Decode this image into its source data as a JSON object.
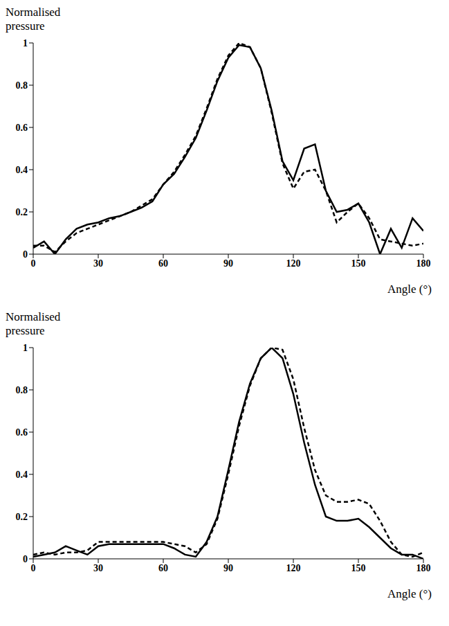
{
  "chart_data": [
    {
      "type": "line",
      "y_label": "Normalised pressure",
      "x_label": "Angle (°)",
      "x": [
        0,
        5,
        10,
        15,
        20,
        25,
        30,
        35,
        40,
        45,
        50,
        55,
        60,
        65,
        70,
        75,
        80,
        85,
        90,
        95,
        100,
        105,
        110,
        115,
        120,
        125,
        130,
        135,
        140,
        145,
        150,
        155,
        160,
        165,
        170,
        175,
        180
      ],
      "series": [
        {
          "color": "#000000",
          "line_style": "solid",
          "values": [
            0.03,
            0.06,
            0,
            0.07,
            0.12,
            0.14,
            0.15,
            0.17,
            0.18,
            0.2,
            0.22,
            0.25,
            0.33,
            0.38,
            0.46,
            0.55,
            0.68,
            0.82,
            0.93,
            0.99,
            0.98,
            0.88,
            0.68,
            0.44,
            0.35,
            0.5,
            0.52,
            0.3,
            0.2,
            0.21,
            0.24,
            0.15,
            0,
            0.12,
            0.03,
            0.17,
            0.11
          ]
        },
        {
          "color": "#000000",
          "line_style": "dashed",
          "values": [
            0.04,
            0.04,
            0.01,
            0.06,
            0.1,
            0.12,
            0.14,
            0.16,
            0.18,
            0.2,
            0.23,
            0.26,
            0.33,
            0.39,
            0.47,
            0.56,
            0.69,
            0.83,
            0.94,
            1.0,
            0.98,
            0.88,
            0.67,
            0.43,
            0.31,
            0.39,
            0.4,
            0.3,
            0.15,
            0.2,
            0.24,
            0.17,
            0.07,
            0.06,
            0.05,
            0.04,
            0.05
          ]
        }
      ],
      "xlim": [
        0,
        180
      ],
      "ylim": [
        0,
        1
      ],
      "xticks": [
        0,
        30,
        60,
        90,
        120,
        150,
        180
      ],
      "yticks": [
        0,
        0.2,
        0.4,
        0.6,
        0.8,
        1
      ]
    },
    {
      "type": "line",
      "y_label": "Normalised pressure",
      "x_label": "Angle (°)",
      "x": [
        0,
        5,
        10,
        15,
        20,
        25,
        30,
        35,
        40,
        45,
        50,
        55,
        60,
        65,
        70,
        75,
        80,
        85,
        90,
        95,
        100,
        105,
        110,
        115,
        120,
        125,
        130,
        135,
        140,
        145,
        150,
        155,
        160,
        165,
        170,
        175,
        180
      ],
      "series": [
        {
          "color": "#000000",
          "line_style": "solid",
          "values": [
            0.01,
            0.02,
            0.03,
            0.06,
            0.04,
            0.02,
            0.06,
            0.07,
            0.07,
            0.07,
            0.07,
            0.07,
            0.07,
            0.05,
            0.02,
            0.01,
            0.08,
            0.2,
            0.42,
            0.65,
            0.83,
            0.95,
            1.0,
            0.95,
            0.78,
            0.55,
            0.35,
            0.2,
            0.18,
            0.18,
            0.19,
            0.15,
            0.1,
            0.05,
            0.02,
            0.02,
            0
          ]
        },
        {
          "color": "#000000",
          "line_style": "dashed",
          "values": [
            0.02,
            0.03,
            0.02,
            0.03,
            0.03,
            0.04,
            0.08,
            0.08,
            0.08,
            0.08,
            0.08,
            0.08,
            0.08,
            0.07,
            0.06,
            0.03,
            0.07,
            0.19,
            0.4,
            0.63,
            0.82,
            0.95,
            1.0,
            0.99,
            0.85,
            0.62,
            0.42,
            0.3,
            0.27,
            0.27,
            0.28,
            0.26,
            0.18,
            0.08,
            0.02,
            0.01,
            0.03
          ]
        }
      ],
      "xlim": [
        0,
        180
      ],
      "ylim": [
        0,
        1
      ],
      "xticks": [
        0,
        30,
        60,
        90,
        120,
        150,
        180
      ],
      "yticks": [
        0,
        0.2,
        0.4,
        0.6,
        0.8,
        1
      ]
    }
  ]
}
